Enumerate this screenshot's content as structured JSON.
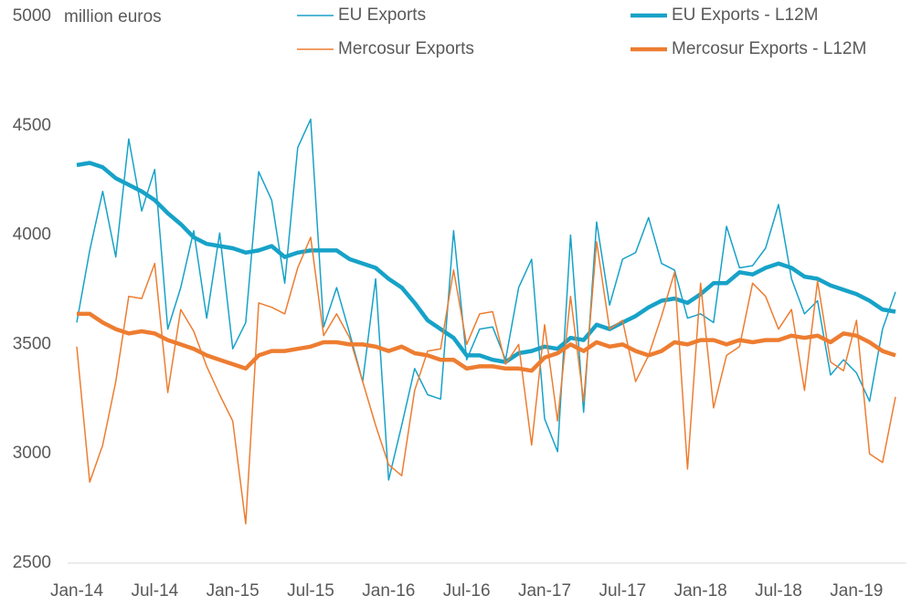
{
  "chart_data": {
    "type": "line",
    "y_label": "million euros",
    "categories": [
      "Jan-14",
      null,
      null,
      null,
      null,
      null,
      "Jul-14",
      null,
      null,
      null,
      null,
      null,
      "Jan-15",
      null,
      null,
      null,
      null,
      null,
      "Jul-15",
      null,
      null,
      null,
      null,
      null,
      "Jan-16",
      null,
      null,
      null,
      null,
      null,
      "Jul-16",
      null,
      null,
      null,
      null,
      null,
      "Jan-17",
      null,
      null,
      null,
      null,
      null,
      "Jul-17",
      null,
      null,
      null,
      null,
      null,
      "Jan-18",
      null,
      null,
      null,
      null,
      null,
      "Jul-18",
      null,
      null,
      null,
      null,
      null,
      "Jan-19",
      null,
      null,
      null
    ],
    "ylim": [
      2500,
      5000
    ],
    "yticks": [
      2500,
      3000,
      3500,
      4000,
      4500,
      5000
    ],
    "grid": false,
    "series": [
      {
        "name": "EU Exports",
        "color": "#17a2c8",
        "line_width": 1.5,
        "values": [
          3600,
          3930,
          4200,
          3900,
          4440,
          4110,
          4300,
          3570,
          3760,
          4020,
          3620,
          4010,
          3480,
          3600,
          4290,
          4160,
          3780,
          4400,
          4530,
          3580,
          3760,
          3550,
          3330,
          3800,
          2880,
          3130,
          3390,
          3270,
          3250,
          4020,
          3430,
          3570,
          3580,
          3430,
          3760,
          3890,
          3160,
          3010,
          4000,
          3190,
          4060,
          3680,
          3890,
          3920,
          4080,
          3870,
          3840,
          3620,
          3640,
          3600,
          4040,
          3850,
          3860,
          3940,
          4140,
          3800,
          3640,
          3700,
          3360,
          3430,
          3370,
          3240,
          3570,
          3740
        ]
      },
      {
        "name": "EU Exports - L12M",
        "color": "#17a2c8",
        "line_width": 4.5,
        "values": [
          4320,
          4330,
          4310,
          4260,
          4230,
          4200,
          4160,
          4100,
          4050,
          3990,
          3960,
          3950,
          3940,
          3920,
          3930,
          3950,
          3900,
          3920,
          3930,
          3930,
          3930,
          3890,
          3870,
          3850,
          3800,
          3760,
          3690,
          3610,
          3570,
          3530,
          3450,
          3450,
          3430,
          3420,
          3460,
          3470,
          3490,
          3480,
          3530,
          3520,
          3590,
          3570,
          3600,
          3630,
          3670,
          3700,
          3710,
          3690,
          3730,
          3780,
          3780,
          3830,
          3820,
          3850,
          3870,
          3850,
          3810,
          3800,
          3770,
          3750,
          3730,
          3700,
          3660,
          3650
        ]
      },
      {
        "name": "Mercosur Exports",
        "color": "#ed7d31",
        "line_width": 1.5,
        "values": [
          3490,
          2870,
          3040,
          3330,
          3720,
          3710,
          3870,
          3280,
          3660,
          3560,
          3400,
          3270,
          3150,
          2680,
          3690,
          3670,
          3640,
          3850,
          3990,
          3540,
          3640,
          3530,
          3330,
          3130,
          2950,
          2900,
          3290,
          3470,
          3480,
          3840,
          3500,
          3640,
          3650,
          3410,
          3500,
          3040,
          3590,
          3150,
          3720,
          3240,
          3970,
          3570,
          3610,
          3330,
          3450,
          3630,
          3830,
          2930,
          3780,
          3210,
          3450,
          3490,
          3780,
          3720,
          3570,
          3660,
          3290,
          3790,
          3420,
          3380,
          3610,
          3000,
          2960,
          3260
        ]
      },
      {
        "name": "Mercosur Exports - L12M",
        "color": "#ed7d31",
        "line_width": 4.5,
        "values": [
          3640,
          3640,
          3600,
          3570,
          3550,
          3560,
          3550,
          3520,
          3500,
          3480,
          3450,
          3430,
          3410,
          3390,
          3450,
          3470,
          3470,
          3480,
          3490,
          3510,
          3510,
          3500,
          3500,
          3490,
          3470,
          3490,
          3460,
          3450,
          3430,
          3430,
          3390,
          3400,
          3400,
          3390,
          3390,
          3380,
          3440,
          3460,
          3500,
          3470,
          3510,
          3490,
          3500,
          3470,
          3450,
          3470,
          3510,
          3500,
          3520,
          3520,
          3500,
          3520,
          3510,
          3520,
          3520,
          3540,
          3530,
          3540,
          3510,
          3550,
          3540,
          3510,
          3470,
          3450
        ]
      }
    ]
  }
}
